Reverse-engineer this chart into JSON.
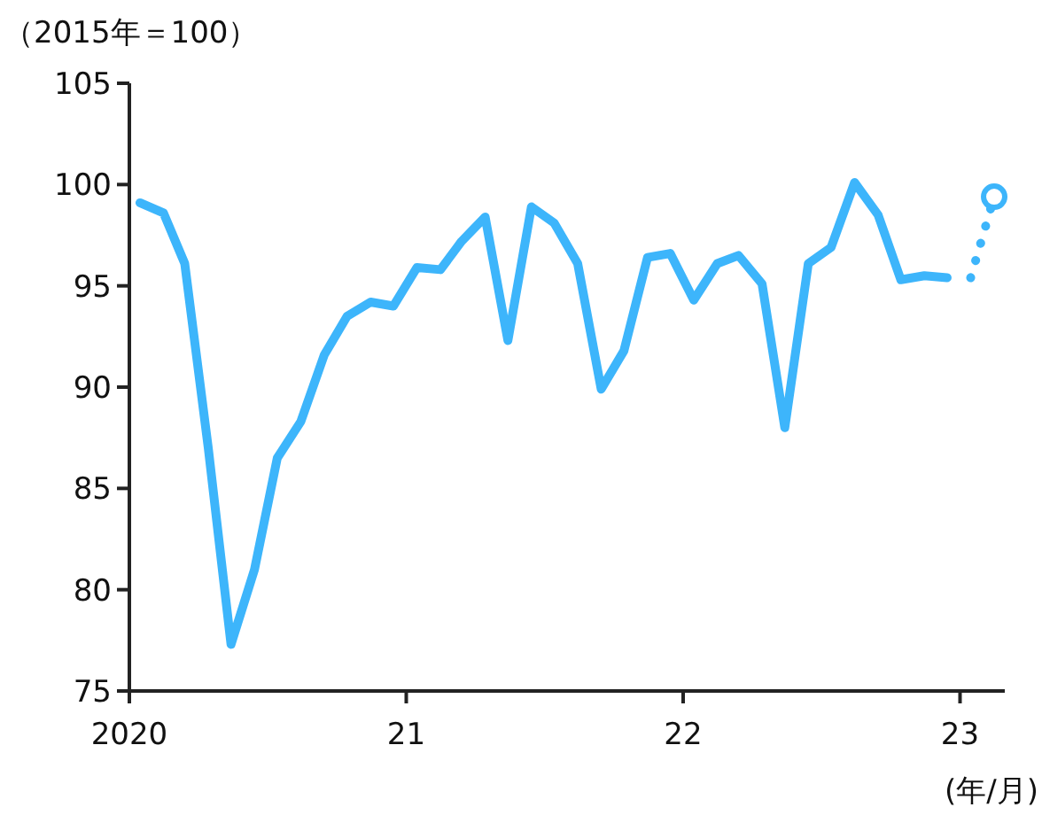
{
  "chart_data": {
    "type": "line",
    "ylabel": "（2015年＝100）",
    "xlabel": "(年/月)",
    "xlim": [
      "2020-01-01",
      "2023-03-01"
    ],
    "xticks": [
      {
        "value": "2020",
        "label": "2020"
      },
      {
        "value": "2021",
        "label": "21"
      },
      {
        "value": "2022",
        "label": "22"
      },
      {
        "value": "2023",
        "label": "23"
      }
    ],
    "ylim": [
      75,
      105
    ],
    "yticks": [
      75,
      80,
      85,
      90,
      95,
      100,
      105
    ],
    "marker": "none",
    "line_style": "solid",
    "series": [
      {
        "color": "#3db5fb",
        "x": [
          "2020-01-15",
          "2020-02-15",
          "2020-03-15",
          "2020-04-15",
          "2020-05-15",
          "2020-06-15",
          "2020-07-15",
          "2020-08-15",
          "2020-09-15",
          "2020-10-15",
          "2020-11-15",
          "2020-12-15",
          "2021-01-15",
          "2021-02-15",
          "2021-03-15",
          "2021-04-15",
          "2021-05-15",
          "2021-06-15",
          "2021-07-15",
          "2021-08-15",
          "2021-09-15",
          "2021-10-15",
          "2021-11-15",
          "2021-12-15",
          "2022-01-15",
          "2022-02-15",
          "2022-03-15",
          "2022-04-15",
          "2022-05-15",
          "2022-06-15",
          "2022-07-15",
          "2022-08-15",
          "2022-09-15",
          "2022-10-15",
          "2022-11-15",
          "2022-12-15"
        ],
        "values": [
          99.1,
          98.6,
          96.1,
          87.0,
          77.3,
          81.0,
          86.5,
          88.3,
          91.6,
          93.5,
          94.2,
          94.0,
          95.9,
          95.8,
          97.2,
          98.4,
          92.3,
          98.9,
          98.1,
          96.1,
          89.9,
          91.8,
          96.4,
          96.6,
          94.3,
          96.1,
          96.5,
          95.1,
          88.0,
          96.1,
          96.9,
          100.1,
          98.5,
          95.3,
          95.5,
          95.4
        ]
      },
      {
        "color": "#3db5fb",
        "line_style": "dotted",
        "x": [
          "2023-01-15",
          "2023-02-15"
        ],
        "values": [
          95.4,
          99.4
        ]
      },
      {
        "type": "scatter",
        "marker": "circle",
        "color": "#3db5fb",
        "x": [
          "2023-02-15"
        ],
        "values": [
          99.4
        ]
      }
    ]
  }
}
